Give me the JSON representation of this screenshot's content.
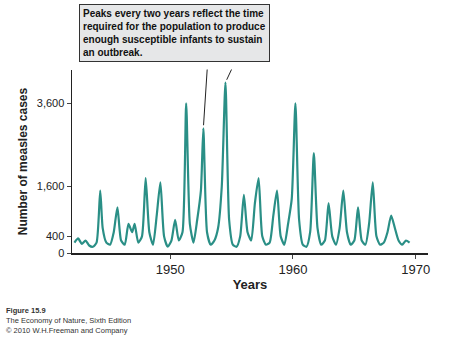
{
  "chart_data": {
    "type": "line",
    "x_label": "Years",
    "y_label": "Number of measles cases",
    "x": [
      1942.2,
      1942.5,
      1942.8,
      1943.1,
      1943.4,
      1943.7,
      1944.0,
      1944.3,
      1944.5,
      1944.8,
      1945.1,
      1945.4,
      1945.7,
      1946.0,
      1946.3,
      1946.6,
      1946.9,
      1947.1,
      1947.4,
      1947.7,
      1948.0,
      1948.3,
      1948.6,
      1948.9,
      1949.2,
      1949.5,
      1949.8,
      1950.1,
      1950.4,
      1950.7,
      1951.0,
      1951.3,
      1951.6,
      1951.9,
      1952.2,
      1952.5,
      1952.7,
      1953.0,
      1953.3,
      1953.6,
      1953.9,
      1954.2,
      1954.5,
      1954.8,
      1955.1,
      1955.4,
      1955.7,
      1956.0,
      1956.3,
      1956.6,
      1956.9,
      1957.2,
      1957.5,
      1957.8,
      1958.1,
      1958.4,
      1958.7,
      1959.0,
      1959.3,
      1959.6,
      1959.9,
      1960.2,
      1960.5,
      1960.8,
      1961.1,
      1961.4,
      1961.7,
      1962.0,
      1962.3,
      1962.6,
      1962.9,
      1963.2,
      1963.5,
      1963.8,
      1964.1,
      1964.4,
      1964.7,
      1965.0,
      1965.3,
      1965.6,
      1965.9,
      1966.2,
      1966.5,
      1966.8,
      1967.1,
      1967.4,
      1967.7,
      1968.0,
      1968.3,
      1968.6,
      1968.9,
      1969.2,
      1969.5
    ],
    "values": [
      250,
      350,
      220,
      300,
      180,
      150,
      250,
      1500,
      600,
      250,
      200,
      500,
      1100,
      300,
      200,
      700,
      500,
      700,
      250,
      400,
      1800,
      500,
      200,
      900,
      1700,
      400,
      150,
      300,
      800,
      300,
      500,
      3600,
      700,
      250,
      800,
      1500,
      3000,
      500,
      200,
      300,
      600,
      1600,
      4100,
      800,
      200,
      150,
      400,
      1400,
      500,
      300,
      1200,
      1800,
      400,
      200,
      250,
      900,
      1500,
      400,
      200,
      700,
      1300,
      3600,
      800,
      200,
      150,
      500,
      2400,
      600,
      200,
      300,
      1200,
      400,
      200,
      600,
      1500,
      500,
      200,
      300,
      1100,
      300,
      200,
      700,
      1700,
      400,
      200,
      250,
      500,
      900,
      600,
      300,
      200,
      300,
      250
    ],
    "color": "#2a8f86",
    "xlim": [
      1942,
      1971
    ],
    "xticks": [
      1950,
      1960,
      1970
    ],
    "ylim": [
      0,
      4400
    ],
    "yticks": [
      0,
      400,
      {
        "value": 1600,
        "label": "1,600"
      },
      {
        "value": 3600,
        "label": "3,600"
      }
    ],
    "grid": false,
    "annotations": [
      {
        "lines": [
          "Peaks every two years reflect the time",
          "required for the population to produce",
          "enough susceptible infants to sustain",
          "an outbreak."
        ],
        "targets": [
          {
            "x": 1952.7,
            "y": 3000
          },
          {
            "x": 1954.5,
            "y": 4100
          }
        ]
      }
    ],
    "source": [
      "Figure 15.9",
      "The Economy of Nature, Sixth Edition",
      "© 2010 W.H.Freeman and Company"
    ]
  }
}
